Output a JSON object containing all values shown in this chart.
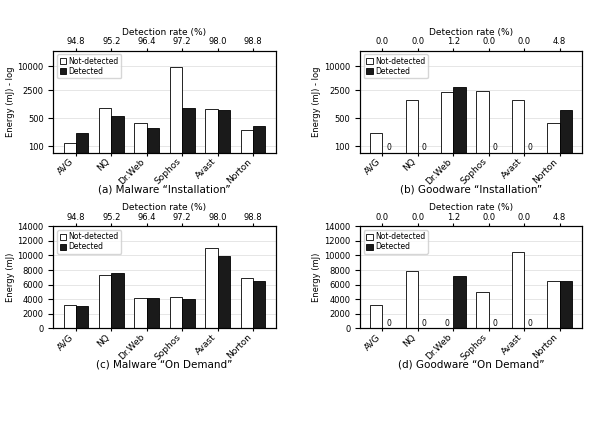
{
  "categories": [
    "AVG",
    "NQ",
    "Dr.Web",
    "Sophos",
    "Avast",
    "Norton"
  ],
  "top_x_labels_a": [
    "94.8",
    "95.2",
    "96.4",
    "97.2",
    "98.0",
    "98.8"
  ],
  "top_x_labels_b": [
    "0.0",
    "0.0",
    "1.2",
    "0.0",
    "0.0",
    "4.8"
  ],
  "top_x_labels_c": [
    "94.8",
    "95.2",
    "96.4",
    "97.2",
    "98.0",
    "98.8"
  ],
  "top_x_labels_d": [
    "0.0",
    "0.0",
    "1.2",
    "0.0",
    "0.0",
    "4.8"
  ],
  "a_not_detected": [
    120,
    900,
    370,
    9500,
    870,
    255
  ],
  "a_detected": [
    210,
    570,
    290,
    900,
    790,
    320
  ],
  "b_not_detected": [
    210,
    1400,
    2300,
    2450,
    1400,
    370
  ],
  "b_detected": [
    0,
    0,
    3000,
    0,
    0,
    800
  ],
  "b_zero_labels_d": [
    true,
    true,
    false,
    true,
    true,
    false
  ],
  "c_not_detected": [
    3200,
    7300,
    4100,
    4300,
    11000,
    6900
  ],
  "c_detected": [
    3100,
    7600,
    4200,
    4000,
    9900,
    6500
  ],
  "d_not_detected": [
    3200,
    7800,
    0,
    5000,
    10500,
    6500
  ],
  "d_detected": [
    0,
    0,
    7200,
    0,
    0,
    6500
  ],
  "d_zero_labels_nd": [
    false,
    false,
    true,
    false,
    false,
    false
  ],
  "d_zero_labels_d": [
    true,
    true,
    false,
    true,
    true,
    false
  ],
  "bar_width": 0.35,
  "ylabel_log": "Energy (mJ) - log",
  "ylabel_linear": "Energy (mJ)",
  "xlabel_top": "Detection rate (%)",
  "subtitle_a": "(a) Malware “Installation”",
  "subtitle_b": "(b) Goodware “Installation”",
  "subtitle_c": "(c) Malware “On Demand”",
  "subtitle_d": "(d) Goodware “On Demand”",
  "color_not_detected": "white",
  "color_detected": "#1a1a1a",
  "edgecolor": "black",
  "legend_not_detected": "Not-detected",
  "legend_detected": "Detected"
}
